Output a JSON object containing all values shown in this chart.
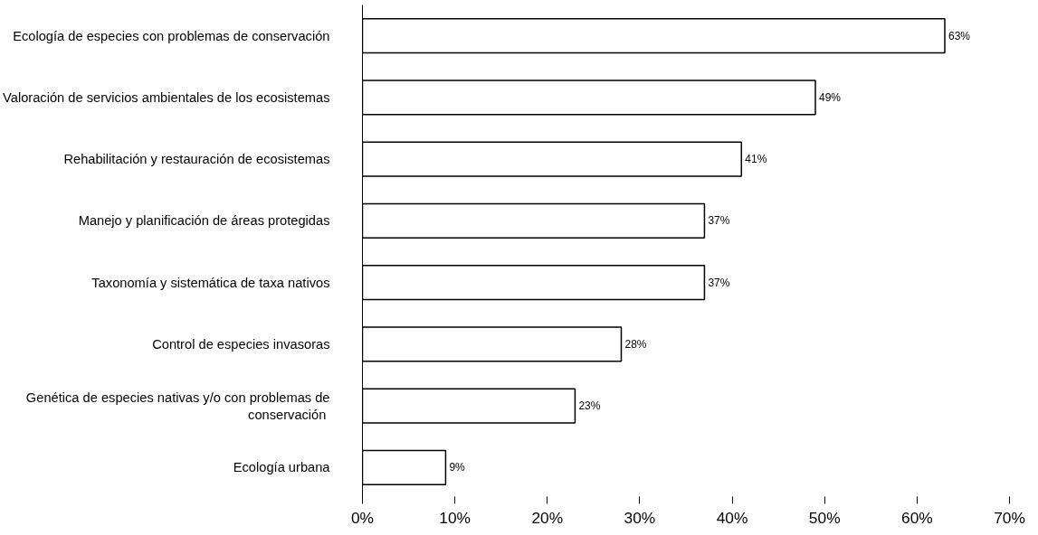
{
  "chart_data": {
    "type": "bar",
    "orientation": "horizontal",
    "categories": [
      "Ecología de especies con problemas de conservación",
      "Valoración de servicios ambientales de los ecosistemas",
      "Rehabilitación y restauración de ecosistemas",
      "Manejo y planificación de áreas protegidas",
      "Taxonomía y sistemática de taxa nativos",
      "Control de especies invasoras",
      "Genética de especies nativas y/o con problemas de\n conservación",
      "Ecología urbana"
    ],
    "values": [
      63,
      49,
      41,
      37,
      37,
      28,
      23,
      9
    ],
    "value_labels": [
      "63%",
      "49%",
      "41%",
      "37%",
      "37%",
      "28%",
      "23%",
      "9%"
    ],
    "color": "#ffffff",
    "xlim": [
      0,
      70
    ],
    "xticks": [
      {
        "value": 0,
        "label": "0%"
      },
      {
        "value": 10,
        "label": "10%"
      },
      {
        "value": 20,
        "label": "20%"
      },
      {
        "value": 30,
        "label": "30%"
      },
      {
        "value": 40,
        "label": "40%"
      },
      {
        "value": 50,
        "label": "50%"
      },
      {
        "value": 60,
        "label": "60%"
      },
      {
        "value": 70,
        "label": "70%"
      }
    ],
    "grid": false
  }
}
